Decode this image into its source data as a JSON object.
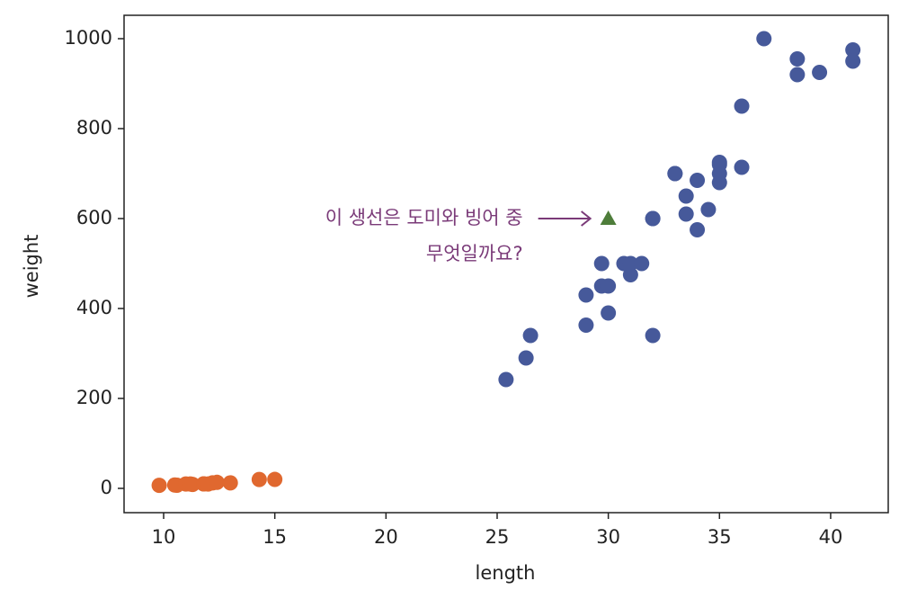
{
  "chart_data": {
    "type": "scatter",
    "xlabel": "length",
    "ylabel": "weight",
    "xlim": [
      8.22,
      42.59
    ],
    "ylim": [
      -54,
      1052
    ],
    "xticks": [
      10,
      15,
      20,
      25,
      30,
      35,
      40
    ],
    "yticks": [
      0,
      200,
      400,
      600,
      800,
      1000
    ],
    "annotation": {
      "lines": [
        "이 생선은 도미와 빙어 중",
        "무엇일까요?"
      ],
      "color": "#7a3a78",
      "x": 30,
      "y": 600
    },
    "series": [
      {
        "color": "#46599a",
        "marker": "circle",
        "x": [
          25.4,
          26.3,
          26.5,
          29.0,
          29.0,
          29.7,
          29.7,
          30.0,
          30.0,
          30.7,
          31.0,
          31.0,
          31.5,
          32.0,
          32.0,
          32.0,
          33.0,
          33.0,
          33.5,
          33.5,
          34.0,
          34.0,
          34.5,
          35.0,
          35.0,
          35.0,
          35.0,
          36.0,
          36.0,
          37.0,
          38.5,
          38.5,
          39.5,
          41.0,
          41.0
        ],
        "values": [
          242,
          290,
          340,
          363,
          430,
          450,
          500,
          390,
          450,
          500,
          475,
          500,
          500,
          340,
          600,
          600,
          700,
          700,
          610,
          650,
          575,
          685,
          620,
          680,
          700,
          725,
          720,
          714,
          850,
          1000,
          920,
          955,
          925,
          975,
          950
        ]
      },
      {
        "color": "#e0682f",
        "marker": "circle",
        "x": [
          9.8,
          10.5,
          10.6,
          11.0,
          11.2,
          11.3,
          11.8,
          11.8,
          12.0,
          12.2,
          12.4,
          13.0,
          14.3,
          15.0
        ],
        "values": [
          6.7,
          7.5,
          7.0,
          9.7,
          9.8,
          8.7,
          10.0,
          9.9,
          9.8,
          12.2,
          13.4,
          12.2,
          19.7,
          19.9
        ]
      },
      {
        "color": "#4e7d3a",
        "marker": "triangle",
        "x": [
          30
        ],
        "values": [
          600
        ]
      }
    ]
  }
}
